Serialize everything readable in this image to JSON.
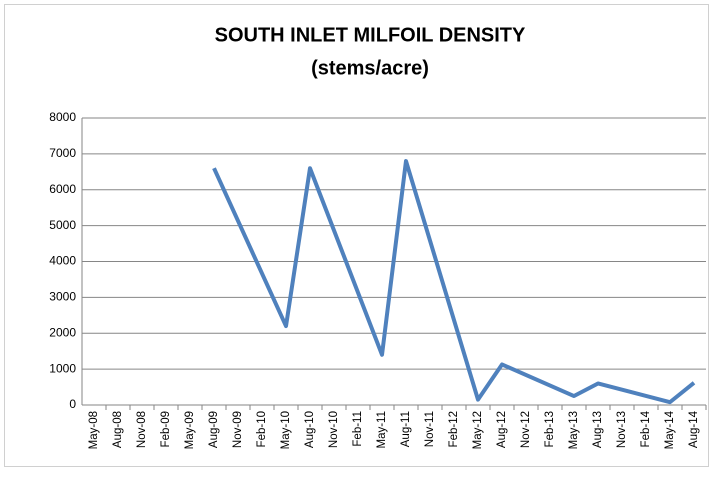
{
  "chart_data": {
    "type": "line",
    "title": "SOUTH INLET MILFOIL DENSITY",
    "subtitle": "(stems/acre)",
    "categories": [
      "May-08",
      "Aug-08",
      "Nov-08",
      "Feb-09",
      "May-09",
      "Aug-09",
      "Nov-09",
      "Feb-10",
      "May-10",
      "Aug-10",
      "Nov-10",
      "Feb-11",
      "May-11",
      "Aug-11",
      "Nov-11",
      "Feb-12",
      "May-12",
      "Aug-12",
      "Nov-12",
      "Feb-13",
      "May-13",
      "Aug-13",
      "Nov-13",
      "Feb-14",
      "May-14",
      "Aug-14"
    ],
    "series": [
      {
        "color": "#4f81bd",
        "x": [
          "Aug-09",
          "May-10",
          "Aug-10",
          "May-11",
          "Aug-11",
          "May-12",
          "Aug-12",
          "May-13",
          "Aug-13",
          "May-14",
          "Aug-14"
        ],
        "values": [
          6600,
          2200,
          6600,
          1400,
          6800,
          150,
          1130,
          250,
          600,
          80,
          620
        ]
      }
    ],
    "ylim": [
      0,
      8000
    ],
    "yticks": [
      0,
      1000,
      2000,
      3000,
      4000,
      5000,
      6000,
      7000,
      8000
    ],
    "grid": true
  }
}
